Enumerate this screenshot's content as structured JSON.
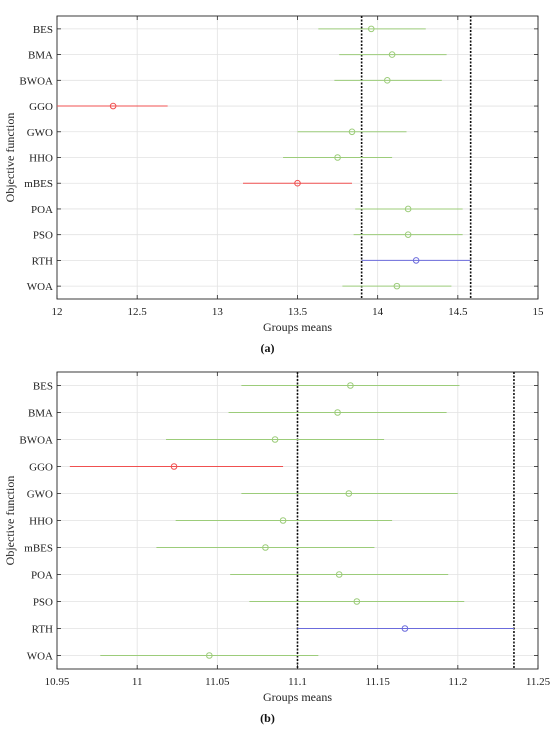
{
  "colors": {
    "normal": "#9ccc7a",
    "worse": "#f05050",
    "selected": "#6b6bdc",
    "grid": "#e2e2e2",
    "axis": "#262626",
    "ref": "#111111"
  },
  "chart_data": [
    {
      "type": "scatter",
      "panel_label": "(a)",
      "xlabel": "Groups means",
      "ylabel": "Objective function",
      "xlim": [
        12,
        15
      ],
      "xticks": [
        "12",
        "12.5",
        "13",
        "13.5",
        "14",
        "14.5",
        "15"
      ],
      "grid": true,
      "reference_lines": [
        13.9,
        14.58
      ],
      "categories": [
        "BES",
        "BMA",
        "BWOA",
        "GGO",
        "GWO",
        "HHO",
        "mBES",
        "POA",
        "PSO",
        "RTH",
        "WOA"
      ],
      "means": [
        13.96,
        14.09,
        14.06,
        12.35,
        13.84,
        13.75,
        13.5,
        14.19,
        14.19,
        14.24,
        14.12
      ],
      "lower": [
        13.63,
        13.76,
        13.73,
        12.0,
        13.5,
        13.41,
        13.16,
        13.86,
        13.85,
        13.9,
        13.78
      ],
      "upper": [
        14.3,
        14.43,
        14.4,
        12.69,
        14.18,
        14.09,
        13.84,
        14.53,
        14.53,
        14.58,
        14.46
      ],
      "status": [
        "normal",
        "normal",
        "normal",
        "worse",
        "normal",
        "normal",
        "worse",
        "normal",
        "normal",
        "selected",
        "normal"
      ]
    },
    {
      "type": "scatter",
      "panel_label": "(b)",
      "xlabel": "Groups means",
      "ylabel": "Objective function",
      "xlim": [
        10.95,
        11.25
      ],
      "xticks": [
        "10.95",
        "11",
        "11.05",
        "11.1",
        "11.15",
        "11.2",
        "11.25"
      ],
      "grid": true,
      "reference_lines": [
        11.1,
        11.235
      ],
      "categories": [
        "BES",
        "BMA",
        "BWOA",
        "GGO",
        "GWO",
        "HHO",
        "mBES",
        "POA",
        "PSO",
        "RTH",
        "WOA"
      ],
      "means": [
        11.133,
        11.125,
        11.086,
        11.023,
        11.132,
        11.091,
        11.08,
        11.126,
        11.137,
        11.167,
        11.045
      ],
      "lower": [
        11.065,
        11.057,
        11.018,
        10.958,
        11.065,
        11.024,
        11.012,
        11.058,
        11.07,
        11.1,
        10.977
      ],
      "upper": [
        11.201,
        11.193,
        11.154,
        11.091,
        11.2,
        11.159,
        11.148,
        11.194,
        11.204,
        11.235,
        11.113
      ],
      "status": [
        "normal",
        "normal",
        "normal",
        "worse",
        "normal",
        "normal",
        "normal",
        "normal",
        "normal",
        "selected",
        "normal"
      ]
    }
  ]
}
